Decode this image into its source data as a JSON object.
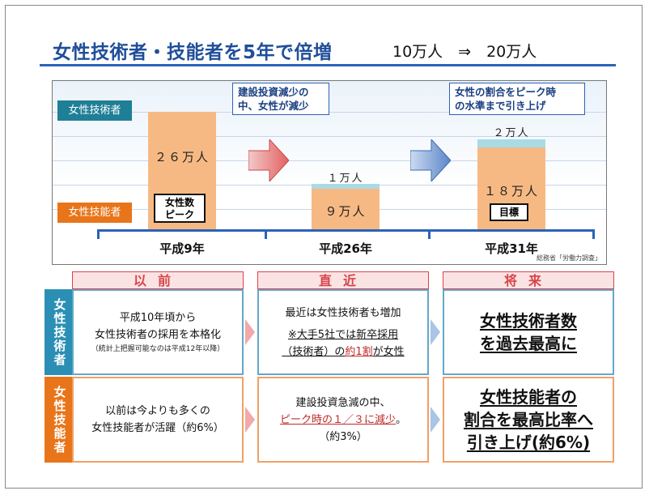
{
  "header": {
    "title": "女性技術者・技能者を5年で倍増",
    "subtitle": "10万人　⇒　20万人"
  },
  "chart": {
    "labels": {
      "engineer": "女性技術者",
      "technician": "女性技能者"
    },
    "callouts": {
      "decline": [
        "建設投資減少の",
        "中、女性が減少"
      ],
      "target": [
        "女性の割合をピーク時",
        "の水準まで引き上げ"
      ]
    },
    "bars": [
      {
        "year": "平成9年",
        "value_text": "２６万人",
        "tag": [
          "女性数",
          "ピーク"
        ]
      },
      {
        "year": "平成26年",
        "top_text": "１万人",
        "value_text": "９万人"
      },
      {
        "year": "平成31年",
        "top_text": "２万人",
        "value_text": "１８万人",
        "tag": [
          "目標"
        ]
      }
    ],
    "source": "総務省「労働力調査」"
  },
  "chart_data": {
    "type": "bar",
    "categories": [
      "平成9年",
      "平成26年",
      "平成31年"
    ],
    "series": [
      {
        "name": "女性技能者",
        "values": [
          26,
          9,
          18
        ]
      },
      {
        "name": "女性技術者",
        "values": [
          0,
          1,
          2
        ]
      }
    ],
    "colors": {
      "女性技能者": "#f7b983",
      "女性技術者": "#a8dbe6"
    }
  },
  "table": {
    "columns": [
      "以前",
      "直近",
      "将来"
    ],
    "rows": [
      {
        "header": "女性技術者",
        "color": "#2b8fb5",
        "cells": [
          {
            "lines": [
              "平成10年頃から",
              "女性技術者の採用を本格化"
            ],
            "note": "（統計上把握可能なのは平成12年以降）"
          },
          {
            "lines": [
              "最近は女性技術者も増加"
            ],
            "red_prefix": "※大手5社では新卒採用",
            "line3_a": "（技術者）の",
            "line3_b": "約1割",
            "line3_c": "が女性"
          },
          {
            "big": [
              "女性技術者数",
              "を過去最高に"
            ]
          }
        ]
      },
      {
        "header": "女性技能者",
        "color": "#e8751a",
        "cells": [
          {
            "lines": [
              "以前は今よりも多くの",
              "女性技能者が活躍（約6%）"
            ]
          },
          {
            "lines": [
              "建設投資急減の中、"
            ],
            "red": "ピーク時の１／３に減少",
            "tail": "。",
            "note2": "（約3%）"
          },
          {
            "big": [
              "女性技能者の",
              "割合を最高比率へ",
              "引き上げ(約6%)"
            ]
          }
        ]
      }
    ]
  }
}
